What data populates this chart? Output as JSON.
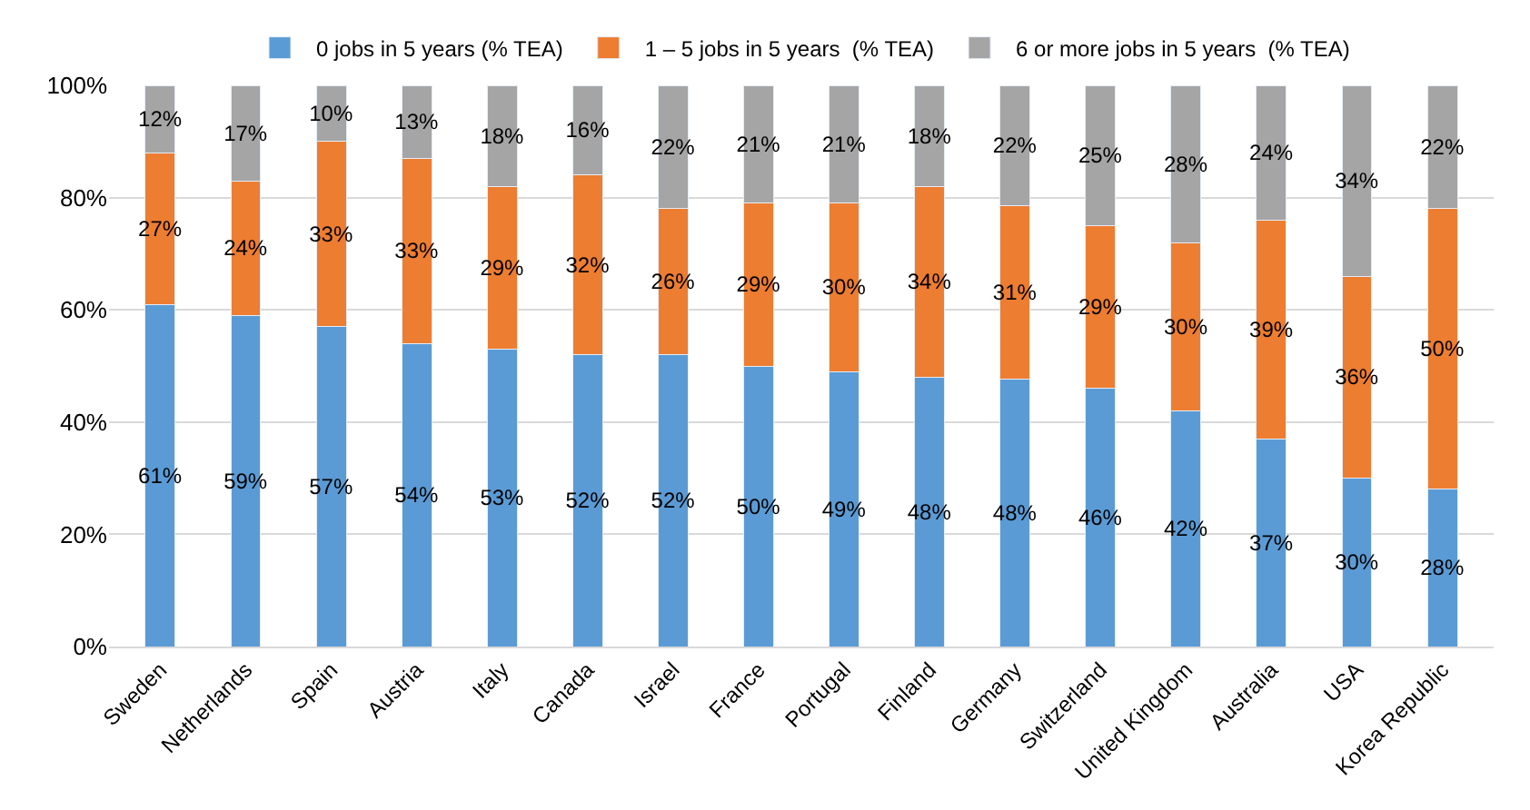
{
  "chart_data": {
    "type": "bar",
    "stacked": true,
    "categories": [
      "Sweden",
      "Netherlands",
      "Spain",
      "Austria",
      "Italy",
      "Canada",
      "Israel",
      "France",
      "Portugal",
      "Finland",
      "Germany",
      "Switzerland",
      "United Kingdom",
      "Australia",
      "USA",
      "Korea Republic"
    ],
    "series": [
      {
        "name": "0 jobs in 5 years (% TEA)",
        "color": "#5b9bd5",
        "values": [
          61,
          59,
          57,
          54,
          53,
          52,
          52,
          50,
          49,
          48,
          47.6,
          46,
          42,
          37,
          30,
          28
        ],
        "value_labels": [
          "61%",
          "59%",
          "57%",
          "54%",
          "53%",
          "52%",
          "52%",
          "50%",
          "49%",
          "48%",
          "48%",
          "46%",
          "42%",
          "37%",
          "30%",
          "28%"
        ]
      },
      {
        "name": "1 – 5 jobs in 5 years  (% TEA)",
        "color": "#ed7d31",
        "values": [
          27,
          24,
          33,
          33,
          29,
          32,
          26,
          29,
          30,
          34,
          30.9,
          29,
          30,
          39,
          36,
          50
        ],
        "value_labels": [
          "27%",
          "24%",
          "33%",
          "33%",
          "29%",
          "32%",
          "26%",
          "29%",
          "30%",
          "34%",
          "31%",
          "29%",
          "30%",
          "39%",
          "36%",
          "50%"
        ]
      },
      {
        "name": "6 or more jobs in 5 years  (% TEA)",
        "color": "#a5a5a5",
        "values": [
          12,
          17,
          10,
          13,
          18,
          16,
          22,
          21,
          21,
          18,
          21.5,
          25,
          28,
          24,
          34,
          22
        ],
        "value_labels": [
          "12%",
          "17%",
          "10%",
          "13%",
          "18%",
          "16%",
          "22%",
          "21%",
          "21%",
          "18%",
          "22%",
          "25%",
          "28%",
          "24%",
          "34%",
          "22%"
        ]
      }
    ],
    "ylim": [
      0,
      100
    ],
    "yticks": [
      {
        "value": 0,
        "label": "0%"
      },
      {
        "value": 20,
        "label": "20%"
      },
      {
        "value": 40,
        "label": "40%"
      },
      {
        "value": 60,
        "label": "60%"
      },
      {
        "value": 80,
        "label": "80%"
      },
      {
        "value": 100,
        "label": "100%"
      }
    ],
    "grid": "y",
    "legend": "top"
  }
}
